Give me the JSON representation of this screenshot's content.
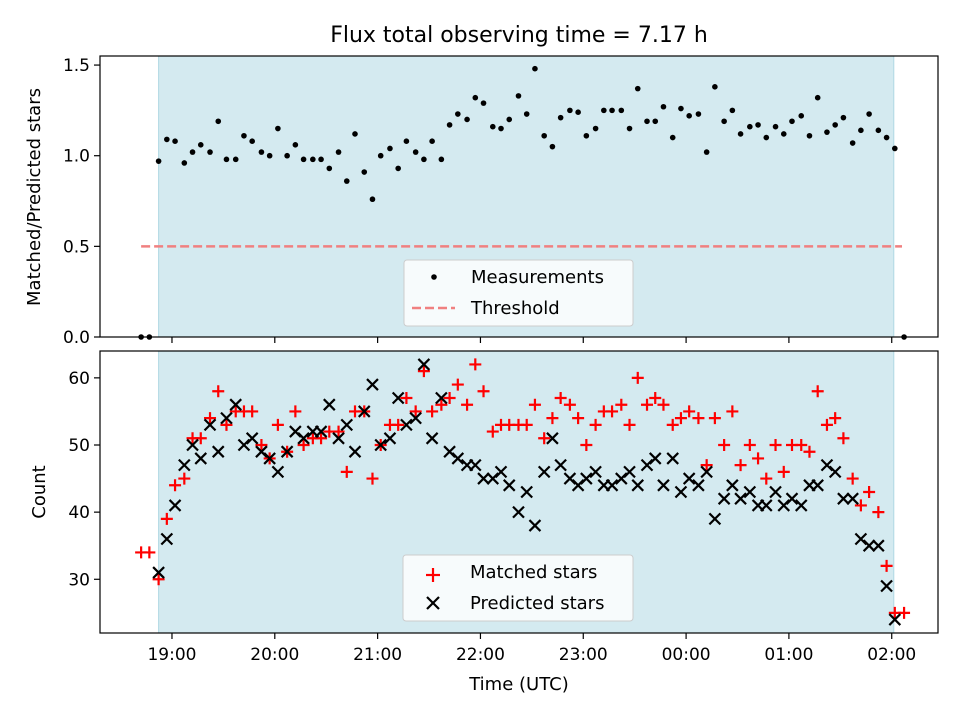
{
  "title": "Flux total observing time = 7.17 h",
  "chart_data": [
    {
      "type": "scatter",
      "ylabel": "Matched/Predicted stars",
      "ylim": [
        0,
        1.55
      ],
      "yticks": [
        0.0,
        0.5,
        1.0,
        1.5
      ],
      "ytick_labels": [
        "0.0",
        "0.5",
        "1.0",
        "1.5"
      ],
      "shaded_region": {
        "x_start": 18.87,
        "x_end": 26.02,
        "color": "#d4eaf0"
      },
      "threshold": {
        "name": "Threshold",
        "value": 0.5,
        "x_start": 18.7,
        "x_end": 26.1,
        "color": "#f08080",
        "style": "dashed"
      },
      "legend": {
        "placement": "lower center",
        "entries": [
          "Measurements",
          "Threshold"
        ]
      },
      "series": [
        {
          "name": "Measurements",
          "marker": "dot",
          "color": "#000000",
          "x": [
            18.7,
            18.78,
            18.87,
            18.95,
            19.03,
            19.12,
            19.2,
            19.28,
            19.37,
            19.45,
            19.53,
            19.62,
            19.7,
            19.78,
            19.87,
            19.95,
            20.03,
            20.12,
            20.2,
            20.28,
            20.37,
            20.45,
            20.53,
            20.62,
            20.7,
            20.78,
            20.87,
            20.95,
            21.03,
            21.12,
            21.2,
            21.28,
            21.37,
            21.45,
            21.53,
            21.62,
            21.7,
            21.78,
            21.87,
            21.95,
            22.03,
            22.12,
            22.2,
            22.28,
            22.37,
            22.45,
            22.53,
            22.62,
            22.7,
            22.78,
            22.87,
            22.95,
            23.03,
            23.12,
            23.2,
            23.28,
            23.37,
            23.45,
            23.53,
            23.62,
            23.7,
            23.78,
            23.87,
            23.95,
            24.03,
            24.12,
            24.2,
            24.28,
            24.37,
            24.45,
            24.53,
            24.62,
            24.7,
            24.78,
            24.87,
            24.95,
            25.03,
            25.12,
            25.2,
            25.28,
            25.37,
            25.45,
            25.53,
            25.62,
            25.7,
            25.78,
            25.87,
            25.95,
            26.03,
            26.12
          ],
          "y": [
            0,
            0,
            0.97,
            1.09,
            1.08,
            0.96,
            1.02,
            1.06,
            1.02,
            1.19,
            0.98,
            0.98,
            1.11,
            1.08,
            1.02,
            1.0,
            1.15,
            1.0,
            1.06,
            0.98,
            0.98,
            0.98,
            0.93,
            1.02,
            0.86,
            1.12,
            0.91,
            0.76,
            1.0,
            1.04,
            0.93,
            1.08,
            1.02,
            0.98,
            1.08,
            0.98,
            1.17,
            1.23,
            1.2,
            1.32,
            1.29,
            1.16,
            1.15,
            1.2,
            1.33,
            1.23,
            1.48,
            1.11,
            1.05,
            1.21,
            1.25,
            1.24,
            1.11,
            1.15,
            1.25,
            1.25,
            1.25,
            1.15,
            1.37,
            1.19,
            1.19,
            1.27,
            1.1,
            1.26,
            1.22,
            1.23,
            1.02,
            1.38,
            1.19,
            1.25,
            1.12,
            1.16,
            1.17,
            1.1,
            1.16,
            1.12,
            1.19,
            1.22,
            1.11,
            1.32,
            1.13,
            1.17,
            1.21,
            1.07,
            1.14,
            1.23,
            1.14,
            1.1,
            1.04,
            0
          ]
        }
      ]
    },
    {
      "type": "scatter",
      "xlabel": "Time (UTC)",
      "ylabel": "Count",
      "xlim": [
        18.3,
        26.45
      ],
      "ylim": [
        22,
        64
      ],
      "xticks": [
        19,
        20,
        21,
        22,
        23,
        24,
        25,
        26
      ],
      "xtick_labels": [
        "19:00",
        "20:00",
        "21:00",
        "22:00",
        "23:00",
        "00:00",
        "01:00",
        "02:00"
      ],
      "yticks": [
        30,
        40,
        50,
        60
      ],
      "ytick_labels": [
        "30",
        "40",
        "50",
        "60"
      ],
      "shaded_region": {
        "x_start": 18.87,
        "x_end": 26.02,
        "color": "#d4eaf0"
      },
      "legend": {
        "placement": "lower center",
        "entries": [
          "Matched stars",
          "Predicted stars"
        ]
      },
      "series": [
        {
          "name": "Matched stars",
          "marker": "plus",
          "color": "#ff0000",
          "x": [
            18.7,
            18.78,
            18.87,
            18.95,
            19.03,
            19.12,
            19.2,
            19.28,
            19.37,
            19.45,
            19.53,
            19.62,
            19.7,
            19.78,
            19.87,
            19.95,
            20.03,
            20.12,
            20.2,
            20.28,
            20.37,
            20.45,
            20.53,
            20.62,
            20.7,
            20.78,
            20.87,
            20.95,
            21.03,
            21.12,
            21.2,
            21.28,
            21.37,
            21.45,
            21.53,
            21.62,
            21.7,
            21.78,
            21.87,
            21.95,
            22.03,
            22.12,
            22.2,
            22.28,
            22.37,
            22.45,
            22.53,
            22.62,
            22.7,
            22.78,
            22.87,
            22.95,
            23.03,
            23.12,
            23.2,
            23.28,
            23.37,
            23.45,
            23.53,
            23.62,
            23.7,
            23.78,
            23.87,
            23.95,
            24.03,
            24.12,
            24.2,
            24.28,
            24.37,
            24.45,
            24.53,
            24.62,
            24.7,
            24.78,
            24.87,
            24.95,
            25.03,
            25.12,
            25.2,
            25.28,
            25.37,
            25.45,
            25.53,
            25.62,
            25.7,
            25.78,
            25.87,
            25.95,
            26.03,
            26.12
          ],
          "y": [
            34,
            34,
            30,
            39,
            44,
            45,
            51,
            51,
            54,
            58,
            53,
            55,
            55,
            55,
            50,
            48,
            53,
            49,
            55,
            50,
            51,
            51,
            52,
            52,
            46,
            55,
            55,
            45,
            50,
            53,
            53,
            57,
            55,
            61,
            55,
            56,
            57,
            59,
            56,
            62,
            58,
            52,
            53,
            53,
            53,
            53,
            56,
            51,
            54,
            57,
            56,
            54,
            50,
            53,
            55,
            55,
            56,
            53,
            60,
            56,
            57,
            56,
            53,
            54,
            55,
            54,
            47,
            54,
            50,
            55,
            47,
            50,
            48,
            45,
            50,
            46,
            50,
            50,
            49,
            58,
            53,
            54,
            51,
            45,
            41,
            43,
            40,
            32,
            25,
            25
          ]
        },
        {
          "name": "Predicted stars",
          "marker": "x",
          "color": "#000000",
          "x": [
            18.87,
            18.95,
            19.03,
            19.12,
            19.2,
            19.28,
            19.37,
            19.45,
            19.53,
            19.62,
            19.7,
            19.78,
            19.87,
            19.95,
            20.03,
            20.12,
            20.2,
            20.28,
            20.37,
            20.45,
            20.53,
            20.62,
            20.7,
            20.78,
            20.87,
            20.95,
            21.03,
            21.12,
            21.2,
            21.28,
            21.37,
            21.45,
            21.53,
            21.62,
            21.7,
            21.78,
            21.87,
            21.95,
            22.03,
            22.12,
            22.2,
            22.28,
            22.37,
            22.45,
            22.53,
            22.62,
            22.7,
            22.78,
            22.87,
            22.95,
            23.03,
            23.12,
            23.2,
            23.28,
            23.37,
            23.45,
            23.53,
            23.62,
            23.7,
            23.78,
            23.87,
            23.95,
            24.03,
            24.12,
            24.2,
            24.28,
            24.37,
            24.45,
            24.53,
            24.62,
            24.7,
            24.78,
            24.87,
            24.95,
            25.03,
            25.12,
            25.2,
            25.28,
            25.37,
            25.45,
            25.53,
            25.62,
            25.7,
            25.78,
            25.87,
            25.95,
            26.03
          ],
          "y": [
            31,
            36,
            41,
            47,
            50,
            48,
            53,
            49,
            54,
            56,
            50,
            51,
            49,
            48,
            46,
            49,
            52,
            51,
            52,
            52,
            56,
            51,
            53,
            49,
            55,
            59,
            50,
            51,
            57,
            53,
            54,
            62,
            51,
            57,
            49,
            48,
            47,
            47,
            45,
            45,
            46,
            44,
            40,
            43,
            38,
            46,
            51,
            47,
            45,
            44,
            45,
            46,
            44,
            44,
            45,
            46,
            44,
            47,
            48,
            44,
            48,
            43,
            45,
            44,
            46,
            39,
            42,
            44,
            42,
            43,
            41,
            41,
            43,
            41,
            42,
            41,
            44,
            44,
            47,
            46,
            42,
            42,
            36,
            35,
            35,
            29,
            24
          ]
        }
      ]
    }
  ]
}
